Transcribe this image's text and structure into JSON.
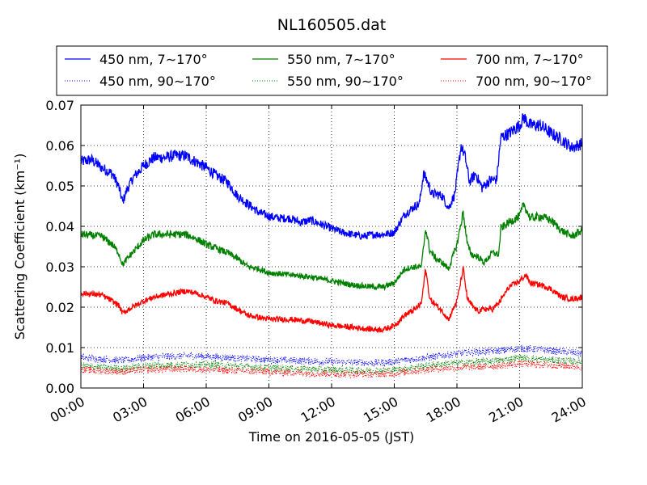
{
  "chart_data": {
    "type": "line",
    "title": "NL160505.dat",
    "xlabel": "Time on 2016-05-05 (JST)",
    "ylabel": "Scattering Coefficient (km⁻¹)",
    "xlim": [
      0,
      24
    ],
    "ylim": [
      0,
      0.07
    ],
    "x_ticks": [
      0,
      3,
      6,
      9,
      12,
      15,
      18,
      21,
      24
    ],
    "x_tick_labels": [
      "00:00",
      "03:00",
      "06:00",
      "09:00",
      "12:00",
      "15:00",
      "18:00",
      "21:00",
      "24:00"
    ],
    "y_ticks": [
      0,
      0.01,
      0.02,
      0.03,
      0.04,
      0.05,
      0.06,
      0.07
    ],
    "y_tick_labels": [
      "0.00",
      "0.01",
      "0.02",
      "0.03",
      "0.04",
      "0.05",
      "0.06",
      "0.07"
    ],
    "grid": true,
    "legend_position": "top",
    "series": [
      {
        "name": "450 nm, 7∼170°",
        "color": "#0000ff",
        "style": "solid",
        "points": [
          [
            0,
            0.056
          ],
          [
            0.5,
            0.0565
          ],
          [
            1,
            0.0545
          ],
          [
            1.5,
            0.053
          ],
          [
            1.8,
            0.05
          ],
          [
            2,
            0.046
          ],
          [
            2.2,
            0.049
          ],
          [
            2.5,
            0.052
          ],
          [
            3,
            0.055
          ],
          [
            3.5,
            0.057
          ],
          [
            4,
            0.057
          ],
          [
            4.5,
            0.0575
          ],
          [
            5,
            0.0575
          ],
          [
            5.5,
            0.056
          ],
          [
            6,
            0.0545
          ],
          [
            6.5,
            0.0525
          ],
          [
            7,
            0.051
          ],
          [
            7.5,
            0.0475
          ],
          [
            8,
            0.0455
          ],
          [
            8.5,
            0.0435
          ],
          [
            9,
            0.0425
          ],
          [
            9.5,
            0.042
          ],
          [
            10,
            0.042
          ],
          [
            10.5,
            0.041
          ],
          [
            11,
            0.0415
          ],
          [
            11.5,
            0.0405
          ],
          [
            12,
            0.0395
          ],
          [
            12.5,
            0.0385
          ],
          [
            13,
            0.038
          ],
          [
            13.5,
            0.0375
          ],
          [
            14,
            0.038
          ],
          [
            14.5,
            0.038
          ],
          [
            15,
            0.0385
          ],
          [
            15.5,
            0.043
          ],
          [
            16,
            0.045
          ],
          [
            16.2,
            0.0455
          ],
          [
            16.4,
            0.053
          ],
          [
            16.6,
            0.051
          ],
          [
            16.8,
            0.048
          ],
          [
            17,
            0.048
          ],
          [
            17.3,
            0.0475
          ],
          [
            17.6,
            0.0445
          ],
          [
            17.9,
            0.048
          ],
          [
            18.2,
            0.06
          ],
          [
            18.4,
            0.057
          ],
          [
            18.6,
            0.051
          ],
          [
            18.9,
            0.053
          ],
          [
            19.2,
            0.0495
          ],
          [
            19.6,
            0.0515
          ],
          [
            19.9,
            0.0515
          ],
          [
            20.1,
            0.062
          ],
          [
            20.5,
            0.063
          ],
          [
            21,
            0.065
          ],
          [
            21.2,
            0.067
          ],
          [
            21.5,
            0.065
          ],
          [
            22,
            0.065
          ],
          [
            22.5,
            0.063
          ],
          [
            23,
            0.0615
          ],
          [
            23.5,
            0.0595
          ],
          [
            24,
            0.0605
          ]
        ]
      },
      {
        "name": "450 nm, 90∼170°",
        "color": "#0000ff",
        "style": "dotted",
        "points": [
          [
            0,
            0.0075
          ],
          [
            2,
            0.0068
          ],
          [
            3,
            0.0075
          ],
          [
            5,
            0.008
          ],
          [
            6,
            0.0078
          ],
          [
            9,
            0.007
          ],
          [
            12,
            0.0065
          ],
          [
            14,
            0.0062
          ],
          [
            15,
            0.0065
          ],
          [
            16,
            0.0072
          ],
          [
            17,
            0.0078
          ],
          [
            18,
            0.0085
          ],
          [
            19,
            0.009
          ],
          [
            20,
            0.0092
          ],
          [
            21,
            0.0098
          ],
          [
            22,
            0.0095
          ],
          [
            23,
            0.009
          ],
          [
            24,
            0.0085
          ]
        ]
      },
      {
        "name": "550 nm, 7∼170°",
        "color": "#008000",
        "style": "solid",
        "points": [
          [
            0,
            0.038
          ],
          [
            1,
            0.0375
          ],
          [
            1.5,
            0.0355
          ],
          [
            1.8,
            0.0335
          ],
          [
            2,
            0.0305
          ],
          [
            2.3,
            0.0325
          ],
          [
            3,
            0.0365
          ],
          [
            3.5,
            0.038
          ],
          [
            4,
            0.038
          ],
          [
            5,
            0.038
          ],
          [
            5.5,
            0.037
          ],
          [
            6,
            0.0355
          ],
          [
            6.5,
            0.0345
          ],
          [
            7,
            0.0335
          ],
          [
            7.5,
            0.032
          ],
          [
            8,
            0.03
          ],
          [
            8.5,
            0.0295
          ],
          [
            9,
            0.0285
          ],
          [
            10,
            0.028
          ],
          [
            11,
            0.0275
          ],
          [
            12,
            0.0265
          ],
          [
            13,
            0.0255
          ],
          [
            14,
            0.025
          ],
          [
            14.5,
            0.025
          ],
          [
            15,
            0.026
          ],
          [
            15.5,
            0.0295
          ],
          [
            16,
            0.03
          ],
          [
            16.3,
            0.03
          ],
          [
            16.5,
            0.0395
          ],
          [
            16.7,
            0.034
          ],
          [
            17,
            0.032
          ],
          [
            17.3,
            0.031
          ],
          [
            17.6,
            0.0295
          ],
          [
            18,
            0.0355
          ],
          [
            18.3,
            0.0435
          ],
          [
            18.5,
            0.0355
          ],
          [
            18.7,
            0.033
          ],
          [
            19,
            0.0325
          ],
          [
            19.3,
            0.031
          ],
          [
            19.7,
            0.0335
          ],
          [
            20,
            0.033
          ],
          [
            20.1,
            0.0395
          ],
          [
            20.5,
            0.041
          ],
          [
            21,
            0.0425
          ],
          [
            21.2,
            0.0455
          ],
          [
            21.5,
            0.042
          ],
          [
            22,
            0.0425
          ],
          [
            22.5,
            0.0415
          ],
          [
            23,
            0.039
          ],
          [
            23.5,
            0.0375
          ],
          [
            24,
            0.039
          ]
        ]
      },
      {
        "name": "550 nm, 90∼170°",
        "color": "#008000",
        "style": "dotted",
        "points": [
          [
            0,
            0.0055
          ],
          [
            2,
            0.0048
          ],
          [
            3,
            0.0055
          ],
          [
            5,
            0.0058
          ],
          [
            6,
            0.0058
          ],
          [
            9,
            0.005
          ],
          [
            12,
            0.0045
          ],
          [
            14,
            0.0043
          ],
          [
            15,
            0.0045
          ],
          [
            16,
            0.0052
          ],
          [
            17,
            0.0058
          ],
          [
            18,
            0.0062
          ],
          [
            19,
            0.0065
          ],
          [
            20,
            0.0068
          ],
          [
            21,
            0.0075
          ],
          [
            22,
            0.007
          ],
          [
            23,
            0.0068
          ],
          [
            24,
            0.0065
          ]
        ]
      },
      {
        "name": "700 nm, 7∼170°",
        "color": "#ff0000",
        "style": "solid",
        "points": [
          [
            0,
            0.0235
          ],
          [
            1,
            0.023
          ],
          [
            1.5,
            0.0215
          ],
          [
            1.8,
            0.0205
          ],
          [
            2,
            0.0185
          ],
          [
            2.3,
            0.0195
          ],
          [
            3,
            0.0215
          ],
          [
            3.5,
            0.0225
          ],
          [
            4,
            0.023
          ],
          [
            5,
            0.024
          ],
          [
            5.5,
            0.0235
          ],
          [
            6,
            0.0225
          ],
          [
            6.5,
            0.0215
          ],
          [
            7,
            0.021
          ],
          [
            7.5,
            0.0195
          ],
          [
            8,
            0.018
          ],
          [
            8.5,
            0.0175
          ],
          [
            9,
            0.017
          ],
          [
            10,
            0.017
          ],
          [
            11,
            0.0165
          ],
          [
            12,
            0.0155
          ],
          [
            13,
            0.015
          ],
          [
            14,
            0.0145
          ],
          [
            14.5,
            0.0145
          ],
          [
            15,
            0.0155
          ],
          [
            15.5,
            0.018
          ],
          [
            16,
            0.0195
          ],
          [
            16.3,
            0.021
          ],
          [
            16.5,
            0.0295
          ],
          [
            16.7,
            0.022
          ],
          [
            17,
            0.0205
          ],
          [
            17.3,
            0.019
          ],
          [
            17.6,
            0.017
          ],
          [
            18,
            0.0215
          ],
          [
            18.3,
            0.0295
          ],
          [
            18.5,
            0.022
          ],
          [
            18.7,
            0.0205
          ],
          [
            19,
            0.019
          ],
          [
            19.3,
            0.0195
          ],
          [
            19.7,
            0.0195
          ],
          [
            20,
            0.021
          ],
          [
            20.5,
            0.025
          ],
          [
            21,
            0.0265
          ],
          [
            21.3,
            0.028
          ],
          [
            21.5,
            0.026
          ],
          [
            22,
            0.0255
          ],
          [
            22.5,
            0.0245
          ],
          [
            23,
            0.0225
          ],
          [
            23.5,
            0.022
          ],
          [
            24,
            0.0225
          ]
        ]
      },
      {
        "name": "700 nm, 90∼170°",
        "color": "#ff0000",
        "style": "dotted",
        "points": [
          [
            0,
            0.0045
          ],
          [
            2,
            0.004
          ],
          [
            3,
            0.0045
          ],
          [
            5,
            0.0048
          ],
          [
            6,
            0.0045
          ],
          [
            9,
            0.004
          ],
          [
            12,
            0.0035
          ],
          [
            14,
            0.0034
          ],
          [
            15,
            0.0036
          ],
          [
            16,
            0.0042
          ],
          [
            17,
            0.0048
          ],
          [
            18,
            0.005
          ],
          [
            19,
            0.0052
          ],
          [
            20,
            0.0055
          ],
          [
            21,
            0.006
          ],
          [
            22,
            0.0058
          ],
          [
            23,
            0.0055
          ],
          [
            24,
            0.0052
          ]
        ]
      }
    ]
  }
}
